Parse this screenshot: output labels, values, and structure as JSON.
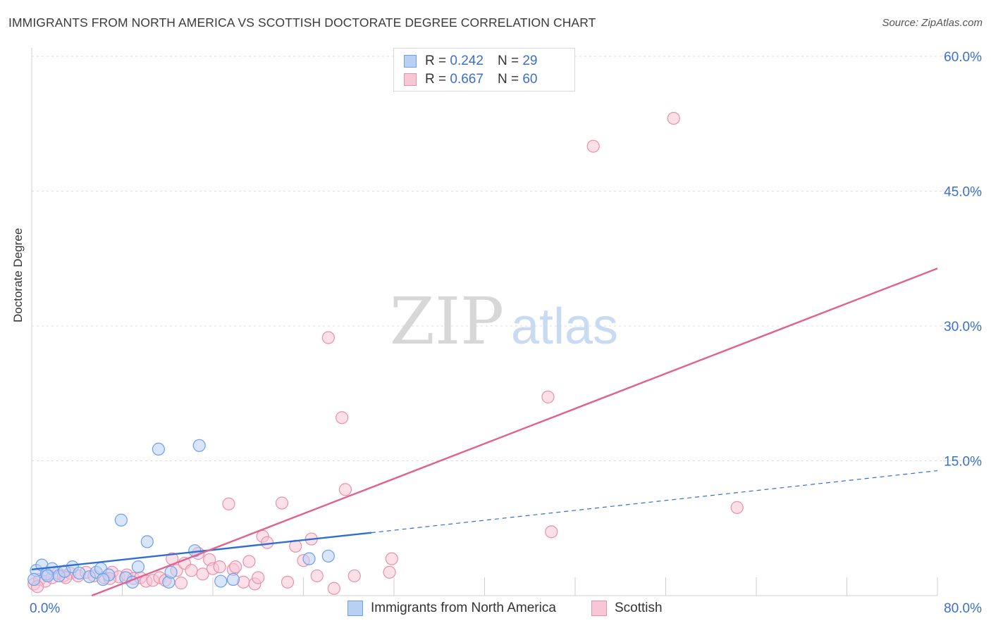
{
  "header": {
    "title": "IMMIGRANTS FROM NORTH AMERICA VS SCOTTISH DOCTORATE DEGREE CORRELATION CHART",
    "source": "Source: ZipAtlas.com"
  },
  "legend": {
    "series1": {
      "r_label": "R =",
      "r_value": "0.242",
      "n_label": "N =",
      "n_value": "29"
    },
    "series2": {
      "r_label": "R =",
      "r_value": "0.667",
      "n_label": "N =",
      "n_value": "60"
    },
    "bottom": [
      "Immigrants from North America",
      "Scottish"
    ]
  },
  "watermark": {
    "zip": "ZIP",
    "atlas": "atlas"
  },
  "chart_data": {
    "type": "scatter",
    "title": "IMMIGRANTS FROM NORTH AMERICA VS SCOTTISH DOCTORATE DEGREE CORRELATION CHART",
    "xlabel": "",
    "ylabel": "Doctorate Degree",
    "xlim": [
      0,
      80
    ],
    "ylim": [
      0,
      60
    ],
    "y_ticks": [
      15,
      30,
      45,
      60
    ],
    "y_tick_labels": [
      "15.0%",
      "30.0%",
      "45.0%",
      "60.0%"
    ],
    "x_ticks": [
      0,
      8,
      16,
      24,
      32,
      40,
      48,
      56,
      64,
      72,
      80
    ],
    "x_tick_labels": {
      "0": "0.0%",
      "80": "80.0%"
    },
    "grid": true,
    "series": [
      {
        "name": "Immigrants from North America",
        "color": "#6f9ee8",
        "fill": "#b9d0f5",
        "line_color": "#2f6fcf",
        "r": 0.242,
        "n": 29,
        "points": [
          [
            0.4,
            2.8
          ],
          [
            0.9,
            3.4
          ],
          [
            1.3,
            2.4
          ],
          [
            1.8,
            3.0
          ],
          [
            2.4,
            2.2
          ],
          [
            2.9,
            2.7
          ],
          [
            3.6,
            3.2
          ],
          [
            4.2,
            2.5
          ],
          [
            5.1,
            2.1
          ],
          [
            5.7,
            2.6
          ],
          [
            6.1,
            3.0
          ],
          [
            6.8,
            2.3
          ],
          [
            7.9,
            8.4
          ],
          [
            8.3,
            2.0
          ],
          [
            8.9,
            1.5
          ],
          [
            9.4,
            3.2
          ],
          [
            10.2,
            6.0
          ],
          [
            11.2,
            16.3
          ],
          [
            12.1,
            1.5
          ],
          [
            12.3,
            2.6
          ],
          [
            14.8,
            16.7
          ],
          [
            14.4,
            5.0
          ],
          [
            16.7,
            1.6
          ],
          [
            17.8,
            1.8
          ],
          [
            24.5,
            4.1
          ],
          [
            26.2,
            4.4
          ],
          [
            0.2,
            1.8
          ],
          [
            1.4,
            2.2
          ],
          [
            6.3,
            1.8
          ]
        ],
        "trend_solid": [
          [
            0,
            2.9
          ],
          [
            30,
            7.0
          ]
        ],
        "trend_dashed": [
          [
            30,
            7.0
          ],
          [
            80,
            13.9
          ]
        ]
      },
      {
        "name": "Scottish",
        "color": "#e890ad",
        "fill": "#f8c6d5",
        "line_color": "#e0628e",
        "r": 0.667,
        "n": 60,
        "points": [
          [
            0.2,
            1.3
          ],
          [
            0.7,
            1.8
          ],
          [
            1.2,
            1.6
          ],
          [
            1.8,
            2.0
          ],
          [
            2.3,
            2.5
          ],
          [
            2.8,
            2.2
          ],
          [
            3.4,
            2.5
          ],
          [
            4.1,
            2.2
          ],
          [
            4.8,
            2.6
          ],
          [
            5.5,
            2.2
          ],
          [
            6.4,
            2.0
          ],
          [
            7.1,
            2.6
          ],
          [
            7.7,
            2.1
          ],
          [
            8.4,
            2.3
          ],
          [
            9.0,
            1.9
          ],
          [
            9.6,
            2.0
          ],
          [
            10.1,
            1.6
          ],
          [
            10.7,
            1.7
          ],
          [
            11.3,
            2.0
          ],
          [
            11.8,
            1.7
          ],
          [
            12.4,
            4.1
          ],
          [
            12.8,
            2.8
          ],
          [
            13.5,
            3.6
          ],
          [
            14.1,
            2.8
          ],
          [
            14.7,
            4.7
          ],
          [
            15.1,
            2.4
          ],
          [
            15.7,
            4.0
          ],
          [
            16.0,
            3.0
          ],
          [
            16.6,
            3.2
          ],
          [
            17.4,
            10.2
          ],
          [
            17.8,
            2.9
          ],
          [
            18.7,
            1.5
          ],
          [
            19.2,
            3.8
          ],
          [
            19.7,
            1.3
          ],
          [
            20.0,
            2.0
          ],
          [
            20.4,
            6.6
          ],
          [
            20.8,
            5.9
          ],
          [
            22.1,
            10.3
          ],
          [
            22.6,
            1.5
          ],
          [
            23.3,
            5.5
          ],
          [
            24.0,
            3.9
          ],
          [
            24.7,
            6.3
          ],
          [
            25.2,
            2.2
          ],
          [
            26.2,
            28.7
          ],
          [
            26.7,
            0.8
          ],
          [
            27.4,
            19.8
          ],
          [
            27.7,
            11.8
          ],
          [
            28.5,
            2.2
          ],
          [
            31.6,
            2.6
          ],
          [
            31.8,
            4.1
          ],
          [
            45.6,
            22.1
          ],
          [
            45.9,
            7.1
          ],
          [
            49.6,
            50.0
          ],
          [
            56.7,
            53.1
          ],
          [
            62.3,
            9.8
          ],
          [
            0.5,
            1.0
          ],
          [
            3.0,
            2.0
          ],
          [
            6.9,
            1.9
          ],
          [
            13.2,
            1.4
          ],
          [
            18.0,
            3.2
          ]
        ],
        "trend_solid": [
          [
            5.3,
            0
          ],
          [
            80,
            36.4
          ]
        ]
      }
    ]
  }
}
